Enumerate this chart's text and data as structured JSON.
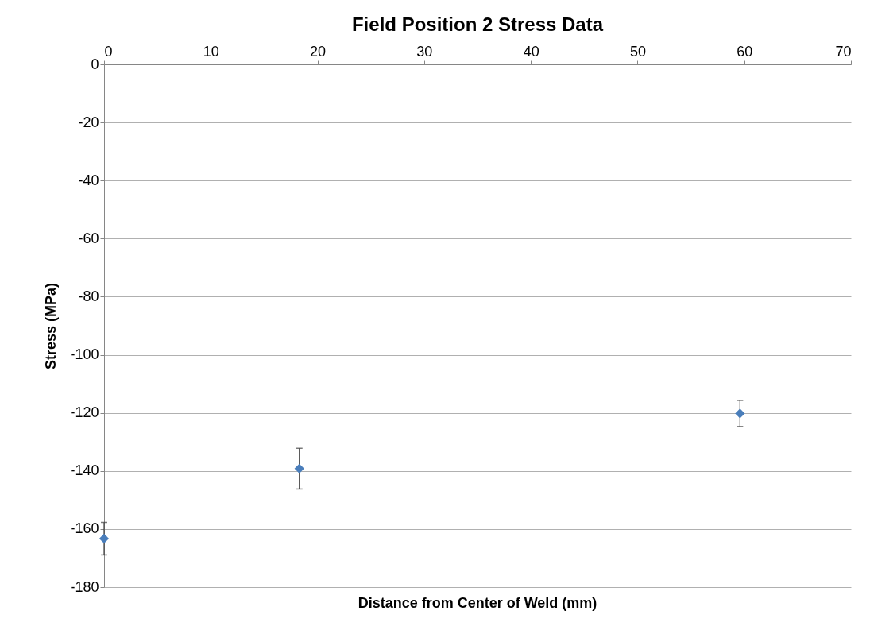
{
  "chart_data": {
    "type": "scatter",
    "title": "Field Position 2 Stress Data",
    "xlabel": "Distance from Center of Weld (mm)",
    "ylabel": "Stress (MPa)",
    "x": [
      0,
      18.3,
      59.6
    ],
    "series": [
      {
        "color": "#4a7ebb",
        "values": [
          -163.3,
          -139.2,
          -120.2
        ],
        "errors": [
          5.6,
          7,
          4.5
        ]
      }
    ],
    "xlim": [
      0,
      70
    ],
    "xticks": [
      0,
      10,
      20,
      30,
      40,
      50,
      60,
      70
    ],
    "ylim": [
      -180,
      0
    ],
    "yticks": [
      -180,
      -160,
      -140,
      -120,
      -100,
      -80,
      -60,
      -40,
      -20,
      0
    ],
    "grid": "y",
    "marker": "diamond"
  }
}
